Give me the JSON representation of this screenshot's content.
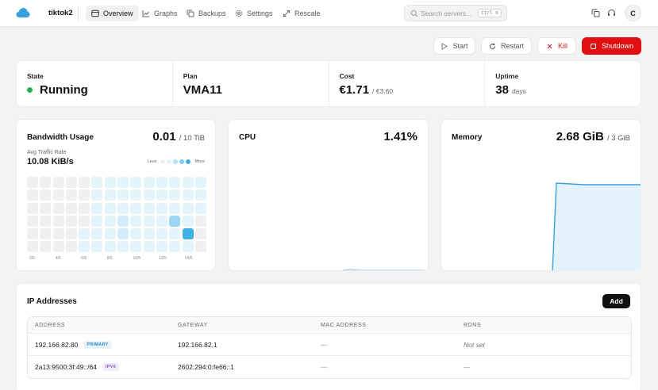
{
  "header": {
    "server_name": "tiktok2",
    "nav": [
      {
        "label": "Overview",
        "icon": "window-icon",
        "active": true
      },
      {
        "label": "Graphs",
        "icon": "chart-icon",
        "active": false
      },
      {
        "label": "Backups",
        "icon": "copy-icon",
        "active": false
      },
      {
        "label": "Settings",
        "icon": "gear-icon",
        "active": false
      },
      {
        "label": "Rescale",
        "icon": "resize-icon",
        "active": false
      }
    ],
    "search_placeholder": "Search servers...",
    "search_shortcut": "Ctrl K",
    "avatar_initial": "C"
  },
  "actions": {
    "start": "Start",
    "restart": "Restart",
    "kill": "Kill",
    "shutdown": "Shutdown"
  },
  "stats": {
    "state": {
      "label": "State",
      "value": "Running",
      "color": "#22b34a"
    },
    "plan": {
      "label": "Plan",
      "value": "VMA11"
    },
    "cost": {
      "label": "Cost",
      "value": "€1.71",
      "sub": "/ €3.60"
    },
    "uptime": {
      "label": "Uptime",
      "value": "38",
      "sub": "days"
    }
  },
  "bandwidth": {
    "title": "Bandwidth Usage",
    "value": "0.01",
    "limit": "/ 10 TiB",
    "avg_label": "Avg Traffic Rate",
    "avg_value": "10.08 KiB/s",
    "legend_less": "Less",
    "legend_more": "More",
    "x_ticks": [
      "2/5",
      "4/5",
      "6/5",
      "8/5",
      "10/5",
      "12/5",
      "14/5"
    ],
    "grid": [
      [
        0,
        0,
        0,
        0,
        0,
        1,
        1,
        1,
        1,
        1,
        1,
        1,
        1,
        1
      ],
      [
        0,
        0,
        0,
        0,
        0,
        1,
        1,
        1,
        1,
        1,
        1,
        1,
        1,
        1
      ],
      [
        0,
        0,
        0,
        0,
        0,
        1,
        1,
        1,
        1,
        1,
        1,
        1,
        1,
        1
      ],
      [
        0,
        0,
        0,
        0,
        0,
        1,
        1,
        2,
        1,
        1,
        1,
        3,
        1,
        0
      ],
      [
        0,
        0,
        0,
        0,
        1,
        1,
        1,
        2,
        1,
        1,
        1,
        1,
        4,
        0
      ],
      [
        0,
        0,
        0,
        0,
        1,
        1,
        1,
        1,
        1,
        1,
        1,
        1,
        1,
        0
      ]
    ],
    "levels": [
      "#f0f0f2",
      "#e4f4fb",
      "#d3eef9",
      "#9cd8f1",
      "#3fb1e3"
    ]
  },
  "cpu": {
    "title": "CPU",
    "value": "1.41%"
  },
  "memory": {
    "title": "Memory",
    "value": "2.68 GiB",
    "limit": "/ 3 GiB"
  },
  "ip": {
    "title": "IP Addresses",
    "add": "Add",
    "columns": [
      "ADDRESS",
      "GATEWAY",
      "MAC ADDRESS",
      "RDNS"
    ],
    "rows": [
      {
        "address": "192.166.82.80",
        "badge": "PRIMARY",
        "gateway": "192.166.82.1",
        "mac": "—",
        "rdns": "Not set"
      },
      {
        "address": "2a13:9500:3f:49::/64",
        "badge": "IPV6",
        "gateway": "2602:294:0:fe66::1",
        "mac": "—",
        "rdns": "—"
      }
    ]
  }
}
